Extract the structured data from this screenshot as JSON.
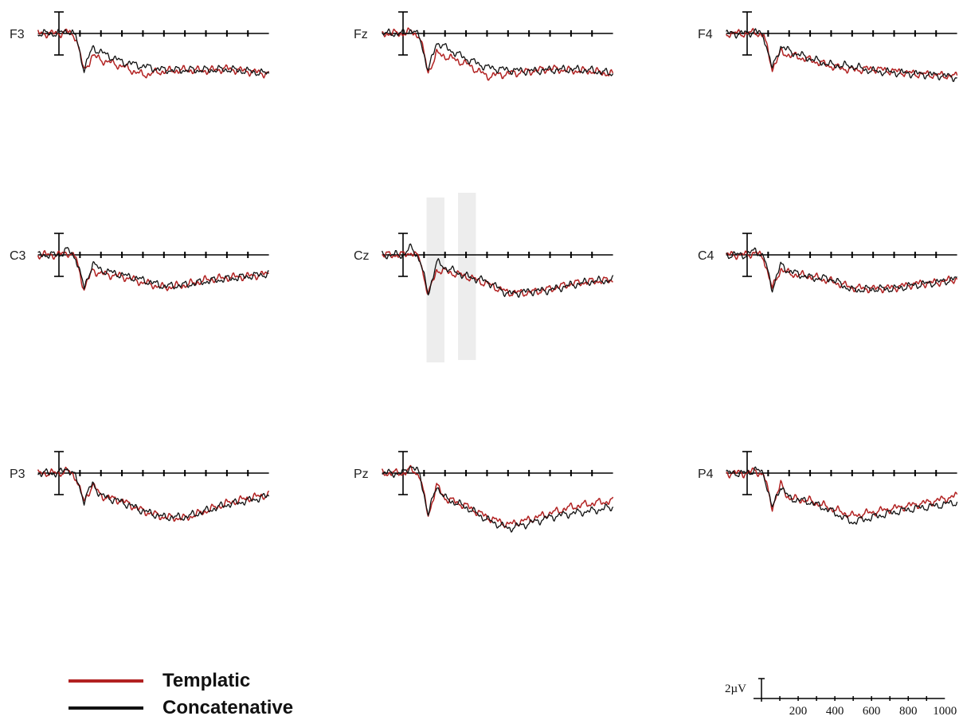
{
  "colors": {
    "templatic": "#b22222",
    "concatenative": "#111111",
    "axis": "#000000",
    "highlight": "#ededed"
  },
  "legend": [
    {
      "label": "Templatic",
      "color": "#b22222"
    },
    {
      "label": "Concatenative",
      "color": "#111111"
    }
  ],
  "scale": {
    "amplitude_label": "2µV",
    "amplitude_uV": 2,
    "time_ticks": [
      "200",
      "400",
      "600",
      "800",
      "1000"
    ]
  },
  "chart_data": {
    "type": "line",
    "x_unit": "ms",
    "y_unit": "µV",
    "x_range": [
      -100,
      1000
    ],
    "x_ticks": [
      200,
      400,
      600,
      800,
      1000
    ],
    "y_axis_inverted": true,
    "grid": false,
    "legend_placement": "bottom-left",
    "series_names": [
      "Templatic",
      "Concatenative"
    ],
    "highlighted_windows": [
      [
        150,
        250
      ],
      [
        300,
        400
      ]
    ],
    "panels": [
      {
        "label": "F3",
        "x": [
          -100,
          0,
          40,
          80,
          120,
          160,
          200,
          300,
          400,
          500,
          600,
          700,
          800,
          900,
          1000
        ],
        "series": [
          {
            "name": "Templatic",
            "values": [
              0,
              0,
              -0.3,
              0.5,
              6.0,
              3.5,
              4.2,
              5.2,
              6.6,
              6.0,
              5.8,
              5.9,
              5.6,
              6.0,
              6.4
            ]
          },
          {
            "name": "Concatenative",
            "values": [
              0,
              0,
              -0.5,
              0.4,
              5.8,
              2.2,
              3.0,
              4.5,
              5.2,
              5.8,
              5.8,
              5.8,
              5.7,
              6.0,
              6.4
            ]
          }
        ]
      },
      {
        "label": "Fz",
        "x": [
          -100,
          0,
          40,
          80,
          120,
          160,
          200,
          300,
          400,
          500,
          600,
          700,
          800,
          900,
          1000
        ],
        "series": [
          {
            "name": "Templatic",
            "values": [
              0,
              0,
              -0.3,
              0.5,
              6.2,
              3.2,
              3.6,
              4.8,
              6.8,
              6.4,
              6.0,
              5.6,
              5.9,
              6.0,
              6.5
            ]
          },
          {
            "name": "Concatenative",
            "values": [
              0,
              0,
              -0.6,
              0.6,
              6.0,
              1.4,
              2.2,
              4.0,
              5.4,
              5.8,
              6.0,
              5.8,
              5.7,
              5.9,
              6.4
            ]
          }
        ]
      },
      {
        "label": "F4",
        "x": [
          -100,
          0,
          40,
          80,
          120,
          160,
          200,
          300,
          400,
          500,
          600,
          700,
          800,
          900,
          1000
        ],
        "series": [
          {
            "name": "Templatic",
            "values": [
              0,
              0,
              -0.2,
              0.4,
              5.6,
              3.0,
              3.4,
              4.2,
              5.2,
              5.8,
              5.6,
              6.0,
              6.4,
              6.6,
              6.8
            ]
          },
          {
            "name": "Concatenative",
            "values": [
              0,
              0,
              -0.4,
              0.5,
              5.6,
              2.0,
              2.8,
              4.0,
              5.0,
              5.2,
              6.0,
              6.2,
              6.4,
              6.6,
              7.0
            ]
          }
        ]
      },
      {
        "label": "C3",
        "x": [
          -100,
          0,
          40,
          80,
          120,
          160,
          200,
          300,
          400,
          500,
          600,
          700,
          800,
          900,
          1000
        ],
        "series": [
          {
            "name": "Templatic",
            "values": [
              0,
              0,
              -0.4,
              0.4,
              5.5,
              2.4,
              3.0,
              3.4,
              4.4,
              5.2,
              4.8,
              4.0,
              3.6,
              3.4,
              3.0
            ]
          },
          {
            "name": "Concatenative",
            "values": [
              0,
              0,
              -0.8,
              0.4,
              5.3,
              1.4,
              2.4,
              3.2,
              4.0,
              5.0,
              4.8,
              4.2,
              3.8,
              3.4,
              3.0
            ]
          }
        ]
      },
      {
        "label": "Cz",
        "x": [
          -100,
          0,
          40,
          80,
          120,
          160,
          200,
          300,
          400,
          500,
          600,
          700,
          800,
          900,
          1000
        ],
        "series": [
          {
            "name": "Templatic",
            "values": [
              0,
              0,
              -0.4,
              0.6,
              6.4,
              2.4,
              2.6,
              3.4,
              4.6,
              6.0,
              6.0,
              5.4,
              4.6,
              4.2,
              4.0
            ]
          },
          {
            "name": "Concatenative",
            "values": [
              0,
              0,
              -1.2,
              0.8,
              6.2,
              1.2,
              2.0,
              3.4,
              4.2,
              6.2,
              5.8,
              5.6,
              4.8,
              4.2,
              4.0
            ]
          }
        ]
      },
      {
        "label": "C4",
        "x": [
          -100,
          0,
          40,
          80,
          120,
          160,
          200,
          300,
          400,
          500,
          600,
          700,
          800,
          900,
          1000
        ],
        "series": [
          {
            "name": "Templatic",
            "values": [
              0,
              0,
              -0.4,
              0.6,
              5.4,
              2.2,
              3.0,
              3.4,
              4.2,
              5.2,
              5.4,
              5.2,
              4.6,
              4.4,
              3.8
            ]
          },
          {
            "name": "Concatenative",
            "values": [
              0,
              0,
              -0.8,
              0.4,
              5.4,
              1.6,
              2.6,
              3.6,
              3.8,
              5.6,
              5.4,
              5.4,
              4.8,
              4.4,
              3.8
            ]
          }
        ]
      },
      {
        "label": "P3",
        "x": [
          -100,
          0,
          40,
          80,
          120,
          160,
          200,
          300,
          400,
          500,
          600,
          700,
          800,
          900,
          1000
        ],
        "series": [
          {
            "name": "Templatic",
            "values": [
              0,
              0,
              -0.4,
              0.6,
              4.6,
              1.8,
              3.6,
              4.4,
              6.0,
              7.0,
              7.2,
              6.0,
              4.8,
              4.0,
              3.4
            ]
          },
          {
            "name": "Concatenative",
            "values": [
              0,
              0,
              -0.8,
              0.6,
              4.4,
              1.6,
              3.6,
              4.6,
              6.0,
              7.0,
              7.0,
              6.0,
              5.0,
              4.4,
              3.6
            ]
          }
        ]
      },
      {
        "label": "Pz",
        "x": [
          -100,
          0,
          40,
          80,
          120,
          160,
          200,
          300,
          400,
          500,
          600,
          700,
          800,
          900,
          1000
        ],
        "series": [
          {
            "name": "Templatic",
            "values": [
              0,
              0,
              -0.6,
              0.4,
              6.8,
              2.0,
              4.0,
              5.2,
              7.0,
              8.2,
              7.4,
              6.4,
              5.4,
              4.8,
              4.4
            ]
          },
          {
            "name": "Concatenative",
            "values": [
              0,
              0,
              -1.2,
              0.2,
              6.6,
              2.0,
              4.0,
              5.4,
              7.4,
              8.8,
              8.0,
              7.0,
              6.4,
              6.0,
              5.4
            ]
          }
        ]
      },
      {
        "label": "P4",
        "x": [
          -100,
          0,
          40,
          80,
          120,
          160,
          200,
          300,
          400,
          500,
          600,
          700,
          800,
          900,
          1000
        ],
        "series": [
          {
            "name": "Templatic",
            "values": [
              0,
              0,
              -0.4,
              0.4,
              5.4,
              1.8,
              4.0,
              4.4,
              5.6,
              6.8,
              6.2,
              5.6,
              5.0,
              4.4,
              3.6
            ]
          },
          {
            "name": "Concatenative",
            "values": [
              0,
              0,
              -0.6,
              0.2,
              5.6,
              2.0,
              4.0,
              4.6,
              6.0,
              7.8,
              7.0,
              6.2,
              5.6,
              5.2,
              4.6
            ]
          }
        ]
      }
    ]
  }
}
